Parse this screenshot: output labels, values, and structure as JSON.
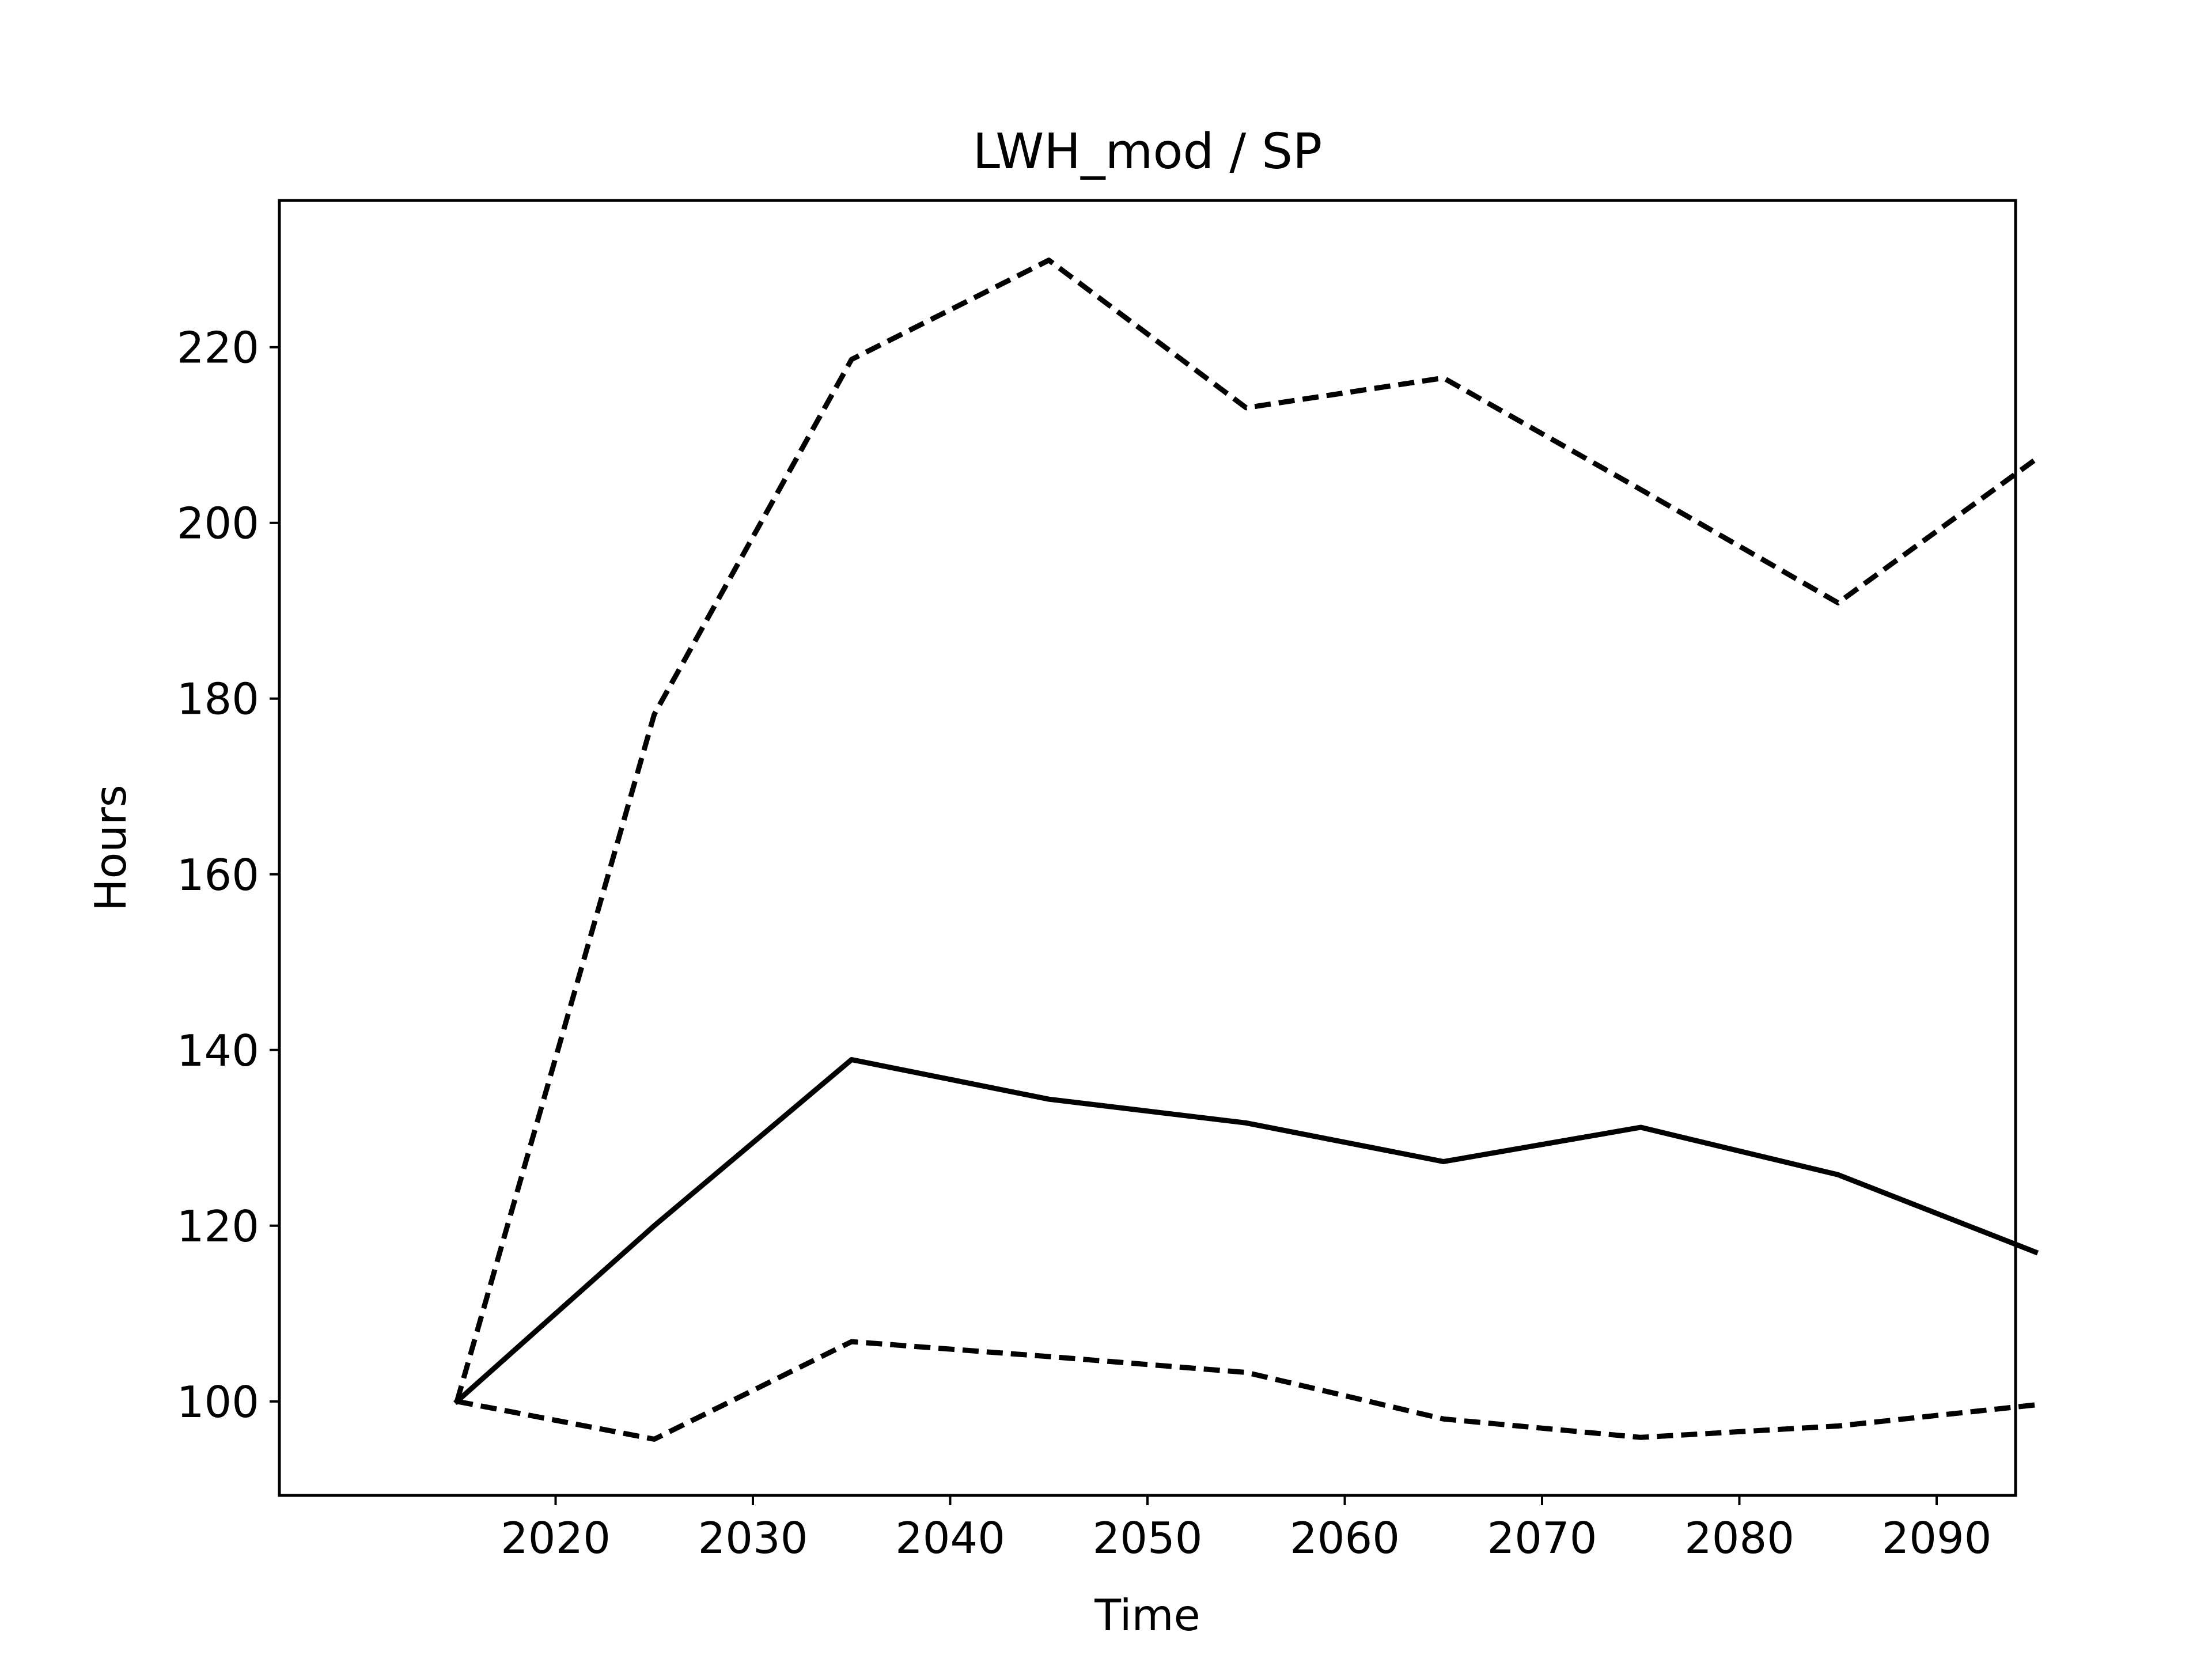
{
  "chart_data": {
    "type": "line",
    "title": "LWH_mod / SP",
    "xlabel": "Time",
    "ylabel": "Hours",
    "x": [
      2015,
      2025,
      2035,
      2045,
      2055,
      2065,
      2075,
      2085,
      2095
    ],
    "xlim": [
      2006,
      2094
    ],
    "ylim": [
      89.3,
      236.7
    ],
    "xticks": [
      2020,
      2030,
      2040,
      2050,
      2060,
      2070,
      2080,
      2090
    ],
    "yticks": [
      100,
      120,
      140,
      160,
      180,
      200,
      220
    ],
    "grid": false,
    "series": [
      {
        "style": "solid",
        "color": "#000000",
        "values": [
          100,
          120,
          138.9,
          134.4,
          131.7,
          127.3,
          131.2,
          125.8,
          117.0
        ]
      },
      {
        "style": "dashed",
        "color": "#000000",
        "values": [
          100,
          178.2,
          218.6,
          229.9,
          213.1,
          216.5,
          203.8,
          190.9,
          207.2
        ]
      },
      {
        "style": "dashed",
        "color": "#000000",
        "values": [
          100,
          95.7,
          106.8,
          105.1,
          103.3,
          98.0,
          95.9,
          97.2,
          99.6
        ]
      }
    ]
  }
}
